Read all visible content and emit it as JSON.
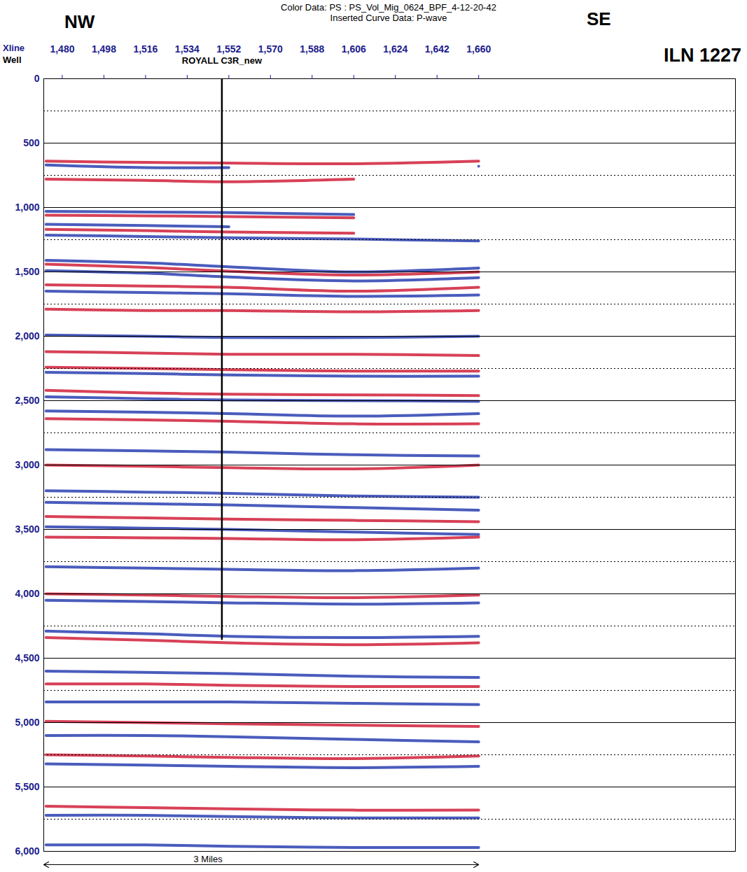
{
  "chart_data": {
    "type": "seismic_section",
    "title": "Color Data: PS : PS_Vol_Mig_0624_BPF_4-12-20-42",
    "subtitle": "Inserted Curve Data: P-wave",
    "annotations": [
      "NW",
      "SE",
      "ILN 1227"
    ],
    "x_label": "Xline",
    "well_row_label": "Well",
    "xlim": [
      1472,
      1771
    ],
    "xticks": [
      1480,
      1498,
      1516,
      1534,
      1552,
      1570,
      1588,
      1606,
      1624,
      1642,
      1660
    ],
    "ylim": [
      0,
      6000
    ],
    "yticks": [
      0,
      500,
      1000,
      1500,
      2000,
      2500,
      3000,
      3500,
      4000,
      4500,
      5000,
      5500,
      6000
    ],
    "y_minor_ticks": [
      250,
      750,
      1250,
      1750,
      2250,
      2750,
      3250,
      3750,
      4250,
      4750,
      5250,
      5750
    ],
    "grid": true,
    "well": {
      "label": "ROYALL C3R_new",
      "xline": 1549,
      "from": 0,
      "to": 4360
    },
    "scale_bar": {
      "label": "3 Miles",
      "from": 1472,
      "to": 1660,
      "label_at": 1543
    },
    "horizons": {
      "x": [
        1473,
        1516,
        1552,
        1606,
        1660
      ],
      "series": [
        {
          "color": "#d0203a",
          "values": [
            640,
            650,
            655,
            660,
            640
          ]
        },
        {
          "color": "#2a3fb0",
          "values": [
            670,
            690,
            690,
            null,
            680
          ]
        },
        {
          "color": "#d0203a",
          "values": [
            780,
            790,
            800,
            780,
            null
          ]
        },
        {
          "color": "#2a3fb0",
          "values": [
            1030,
            1035,
            1040,
            1055,
            null
          ]
        },
        {
          "color": "#d0203a",
          "values": [
            1060,
            1065,
            1070,
            1080,
            null
          ]
        },
        {
          "color": "#2a3fb0",
          "values": [
            1130,
            1140,
            1150,
            null,
            null
          ]
        },
        {
          "color": "#d0203a",
          "values": [
            1170,
            1180,
            1190,
            1200,
            null
          ]
        },
        {
          "color": "#2a3fb0",
          "values": [
            1215,
            1225,
            1235,
            1245,
            1260
          ]
        },
        {
          "color": "#2a3fb0",
          "values": [
            1410,
            1430,
            1460,
            1500,
            1470
          ]
        },
        {
          "color": "#d0203a",
          "values": [
            1440,
            1465,
            1495,
            1525,
            1500
          ]
        },
        {
          "color": "#2a3fb0",
          "values": [
            1490,
            1510,
            1540,
            1570,
            1545
          ]
        },
        {
          "color": "#d0203a",
          "values": [
            1600,
            1610,
            1620,
            1650,
            1620
          ]
        },
        {
          "color": "#2a3fb0",
          "values": [
            1650,
            1660,
            1670,
            1690,
            1680
          ]
        },
        {
          "color": "#d0203a",
          "values": [
            1790,
            1800,
            1800,
            1810,
            1800
          ]
        },
        {
          "color": "#2a3fb0",
          "values": [
            1990,
            2000,
            2010,
            2010,
            2000
          ]
        },
        {
          "color": "#d0203a",
          "values": [
            2120,
            2130,
            2140,
            2140,
            2150
          ]
        },
        {
          "color": "#d0203a",
          "values": [
            2240,
            2250,
            2260,
            2270,
            2270
          ]
        },
        {
          "color": "#2a3fb0",
          "values": [
            2280,
            2290,
            2300,
            2310,
            2310
          ]
        },
        {
          "color": "#d0203a",
          "values": [
            2420,
            2440,
            2450,
            2455,
            2460
          ]
        },
        {
          "color": "#2a3fb0",
          "values": [
            2470,
            2485,
            2495,
            2500,
            2505
          ]
        },
        {
          "color": "#2a3fb0",
          "values": [
            2580,
            2590,
            2600,
            2620,
            2600
          ]
        },
        {
          "color": "#d0203a",
          "values": [
            2640,
            2650,
            2660,
            2680,
            2680
          ]
        },
        {
          "color": "#2a3fb0",
          "values": [
            2880,
            2890,
            2900,
            2920,
            2930
          ]
        },
        {
          "color": "#d0203a",
          "values": [
            3000,
            3010,
            3020,
            3030,
            3000
          ]
        },
        {
          "color": "#2a3fb0",
          "values": [
            3200,
            3210,
            3220,
            3240,
            3250
          ]
        },
        {
          "color": "#2a3fb0",
          "values": [
            3290,
            3300,
            3310,
            3330,
            3350
          ]
        },
        {
          "color": "#d0203a",
          "values": [
            3400,
            3410,
            3420,
            3430,
            3440
          ]
        },
        {
          "color": "#2a3fb0",
          "values": [
            3480,
            3490,
            3500,
            3520,
            3540
          ]
        },
        {
          "color": "#d0203a",
          "values": [
            3560,
            3565,
            3570,
            3580,
            3560
          ]
        },
        {
          "color": "#2a3fb0",
          "values": [
            3790,
            3800,
            3810,
            3820,
            3800
          ]
        },
        {
          "color": "#d0203a",
          "values": [
            4000,
            4010,
            4020,
            4030,
            4010
          ]
        },
        {
          "color": "#2a3fb0",
          "values": [
            4050,
            4060,
            4070,
            4080,
            4070
          ]
        },
        {
          "color": "#2a3fb0",
          "values": [
            4290,
            4310,
            4330,
            4340,
            4330
          ]
        },
        {
          "color": "#d0203a",
          "values": [
            4340,
            4360,
            4380,
            4395,
            4380
          ]
        },
        {
          "color": "#2a3fb0",
          "values": [
            4600,
            4610,
            4620,
            4640,
            4650
          ]
        },
        {
          "color": "#d0203a",
          "values": [
            4700,
            4700,
            4710,
            4720,
            4720
          ]
        },
        {
          "color": "#2a3fb0",
          "values": [
            4840,
            4840,
            4840,
            4850,
            4860
          ]
        },
        {
          "color": "#d0203a",
          "values": [
            4990,
            5000,
            5010,
            5020,
            5030
          ]
        },
        {
          "color": "#2a3fb0",
          "values": [
            5100,
            5100,
            5110,
            5130,
            5150
          ]
        },
        {
          "color": "#d0203a",
          "values": [
            5250,
            5260,
            5270,
            5280,
            5260
          ]
        },
        {
          "color": "#2a3fb0",
          "values": [
            5320,
            5330,
            5340,
            5350,
            5340
          ]
        },
        {
          "color": "#d0203a",
          "values": [
            5650,
            5660,
            5670,
            5680,
            5680
          ]
        },
        {
          "color": "#2a3fb0",
          "values": [
            5720,
            5720,
            5730,
            5740,
            5740
          ]
        },
        {
          "color": "#2a3fb0",
          "values": [
            5950,
            5950,
            5960,
            5970,
            5970
          ]
        }
      ]
    }
  }
}
